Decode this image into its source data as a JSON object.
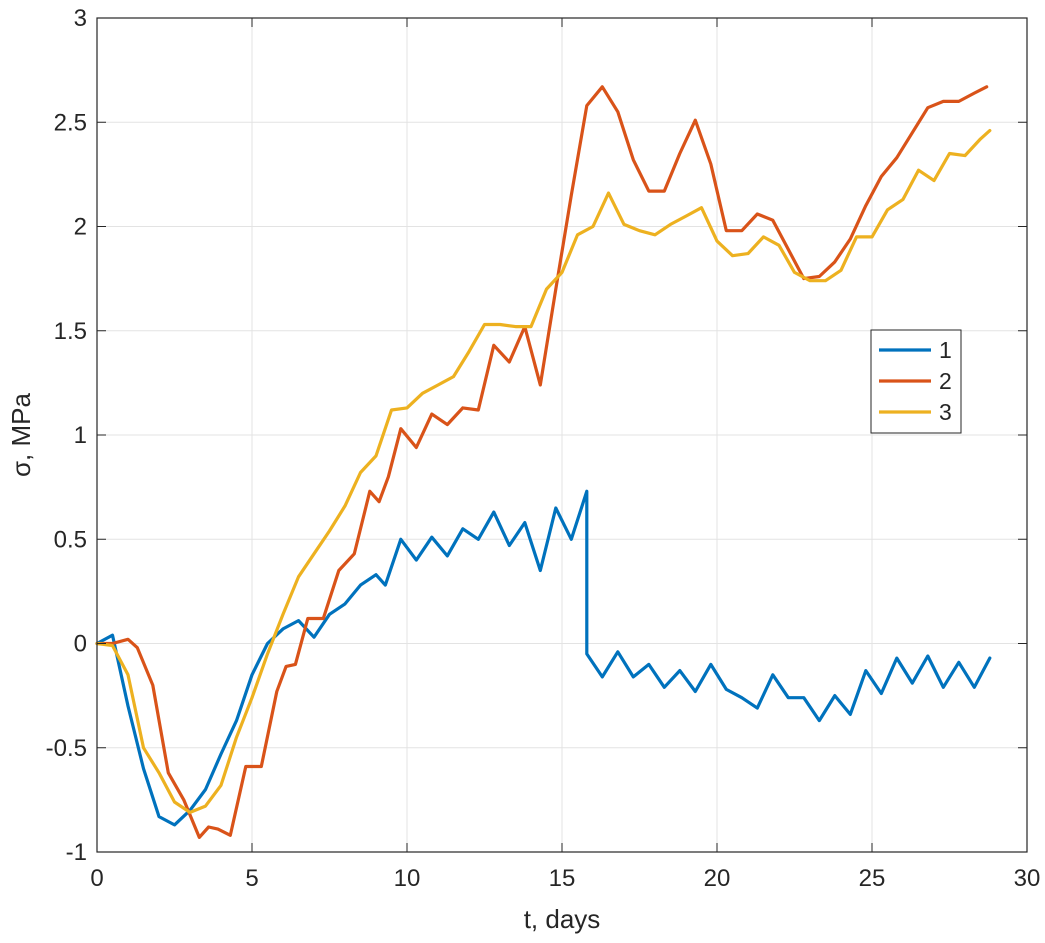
{
  "chart_data": {
    "type": "line",
    "xlabel": "t, days",
    "ylabel": "σ, MPa",
    "xlim": [
      0,
      30
    ],
    "ylim": [
      -1,
      3
    ],
    "xticks": [
      0,
      5,
      10,
      15,
      20,
      25,
      30
    ],
    "xtick_labels": [
      "0",
      "5",
      "10",
      "15",
      "20",
      "25",
      "30"
    ],
    "yticks": [
      -1,
      -0.5,
      0,
      0.5,
      1,
      1.5,
      2,
      2.5,
      3
    ],
    "ytick_labels": [
      "-1",
      "-0.5",
      "0",
      "0.5",
      "1",
      "1.5",
      "2",
      "2.5",
      "3"
    ],
    "grid": true,
    "legend_position": "right, middle",
    "series": [
      {
        "name": "1",
        "color": "#0072BD",
        "x": [
          0,
          0.5,
          1,
          1.5,
          2,
          2.5,
          3,
          3.5,
          4,
          4.5,
          5,
          5.5,
          6,
          6.5,
          7,
          7.5,
          8,
          8.5,
          9,
          9.3,
          9.8,
          10.3,
          10.8,
          11.3,
          11.8,
          12.3,
          12.8,
          13.3,
          13.8,
          14.3,
          14.8,
          15.3,
          15.8,
          15.8,
          16.3,
          16.8,
          17.3,
          17.8,
          18.3,
          18.8,
          19.3,
          19.8,
          20.3,
          20.8,
          21.3,
          21.8,
          22.3,
          22.8,
          23.3,
          23.8,
          24.3,
          24.8,
          25.3,
          25.8,
          26.3,
          26.8,
          27.3,
          27.8,
          28.3,
          28.8
        ],
        "y": [
          0,
          0.04,
          -0.3,
          -0.6,
          -0.83,
          -0.87,
          -0.8,
          -0.7,
          -0.53,
          -0.37,
          -0.15,
          0,
          0.07,
          0.11,
          0.03,
          0.14,
          0.19,
          0.28,
          0.33,
          0.28,
          0.5,
          0.4,
          0.51,
          0.42,
          0.55,
          0.5,
          0.63,
          0.47,
          0.58,
          0.35,
          0.65,
          0.5,
          0.73,
          -0.05,
          -0.16,
          -0.04,
          -0.16,
          -0.1,
          -0.21,
          -0.13,
          -0.23,
          -0.1,
          -0.22,
          -0.26,
          -0.31,
          -0.15,
          -0.26,
          -0.26,
          -0.37,
          -0.25,
          -0.34,
          -0.13,
          -0.24,
          -0.07,
          -0.19,
          -0.06,
          -0.21,
          -0.09,
          -0.21,
          -0.07
        ]
      },
      {
        "name": "2",
        "color": "#D95319",
        "x": [
          0,
          0.5,
          1,
          1.3,
          1.8,
          2.3,
          2.8,
          3.3,
          3.6,
          3.9,
          4.3,
          4.8,
          5.3,
          5.8,
          6.1,
          6.4,
          6.8,
          7.3,
          7.8,
          8.3,
          8.8,
          9.1,
          9.4,
          9.8,
          10.3,
          10.8,
          11.3,
          11.8,
          12.3,
          12.8,
          13.3,
          13.8,
          14.3,
          14.8,
          15.3,
          15.8,
          16.3,
          16.8,
          17.3,
          17.8,
          18.3,
          18.8,
          19.3,
          19.8,
          20.3,
          20.8,
          21.3,
          21.8,
          22.3,
          22.8,
          23.3,
          23.8,
          24.3,
          24.8,
          25.3,
          25.8,
          26.3,
          26.8,
          27.3,
          27.8,
          28.3,
          28.7
        ],
        "y": [
          0,
          0,
          0.02,
          -0.02,
          -0.2,
          -0.62,
          -0.75,
          -0.93,
          -0.88,
          -0.89,
          -0.92,
          -0.59,
          -0.59,
          -0.23,
          -0.11,
          -0.1,
          0.12,
          0.12,
          0.35,
          0.43,
          0.73,
          0.68,
          0.8,
          1.03,
          0.94,
          1.1,
          1.05,
          1.13,
          1.12,
          1.43,
          1.35,
          1.52,
          1.24,
          1.7,
          2.15,
          2.58,
          2.67,
          2.55,
          2.32,
          2.17,
          2.17,
          2.35,
          2.51,
          2.3,
          1.98,
          1.98,
          2.06,
          2.03,
          1.89,
          1.75,
          1.76,
          1.83,
          1.94,
          2.1,
          2.24,
          2.33,
          2.45,
          2.57,
          2.6,
          2.6,
          2.64,
          2.67
        ]
      },
      {
        "name": "3",
        "color": "#EDB120",
        "x": [
          0,
          0.5,
          1,
          1.5,
          2,
          2.5,
          3,
          3.5,
          4,
          4.5,
          5,
          5.5,
          6,
          6.5,
          7,
          7.5,
          8,
          8.5,
          9,
          9.5,
          10,
          10.5,
          11,
          11.5,
          12,
          12.5,
          13,
          13.5,
          14,
          14.5,
          15,
          15.5,
          16,
          16.5,
          17,
          17.5,
          18,
          18.5,
          19,
          19.5,
          20,
          20.5,
          21,
          21.5,
          22,
          22.5,
          23,
          23.5,
          24,
          24.5,
          25,
          25.5,
          26,
          26.5,
          27,
          27.5,
          28,
          28.5,
          28.8
        ],
        "y": [
          0,
          -0.01,
          -0.15,
          -0.5,
          -0.62,
          -0.76,
          -0.81,
          -0.78,
          -0.68,
          -0.45,
          -0.26,
          -0.05,
          0.14,
          0.32,
          0.43,
          0.54,
          0.66,
          0.82,
          0.9,
          1.12,
          1.13,
          1.2,
          1.24,
          1.28,
          1.4,
          1.53,
          1.53,
          1.52,
          1.52,
          1.7,
          1.78,
          1.96,
          2.0,
          2.16,
          2.01,
          1.98,
          1.96,
          2.01,
          2.05,
          2.09,
          1.93,
          1.86,
          1.87,
          1.95,
          1.91,
          1.78,
          1.74,
          1.74,
          1.79,
          1.95,
          1.95,
          2.08,
          2.13,
          2.27,
          2.22,
          2.35,
          2.34,
          2.42,
          2.46
        ]
      }
    ]
  }
}
